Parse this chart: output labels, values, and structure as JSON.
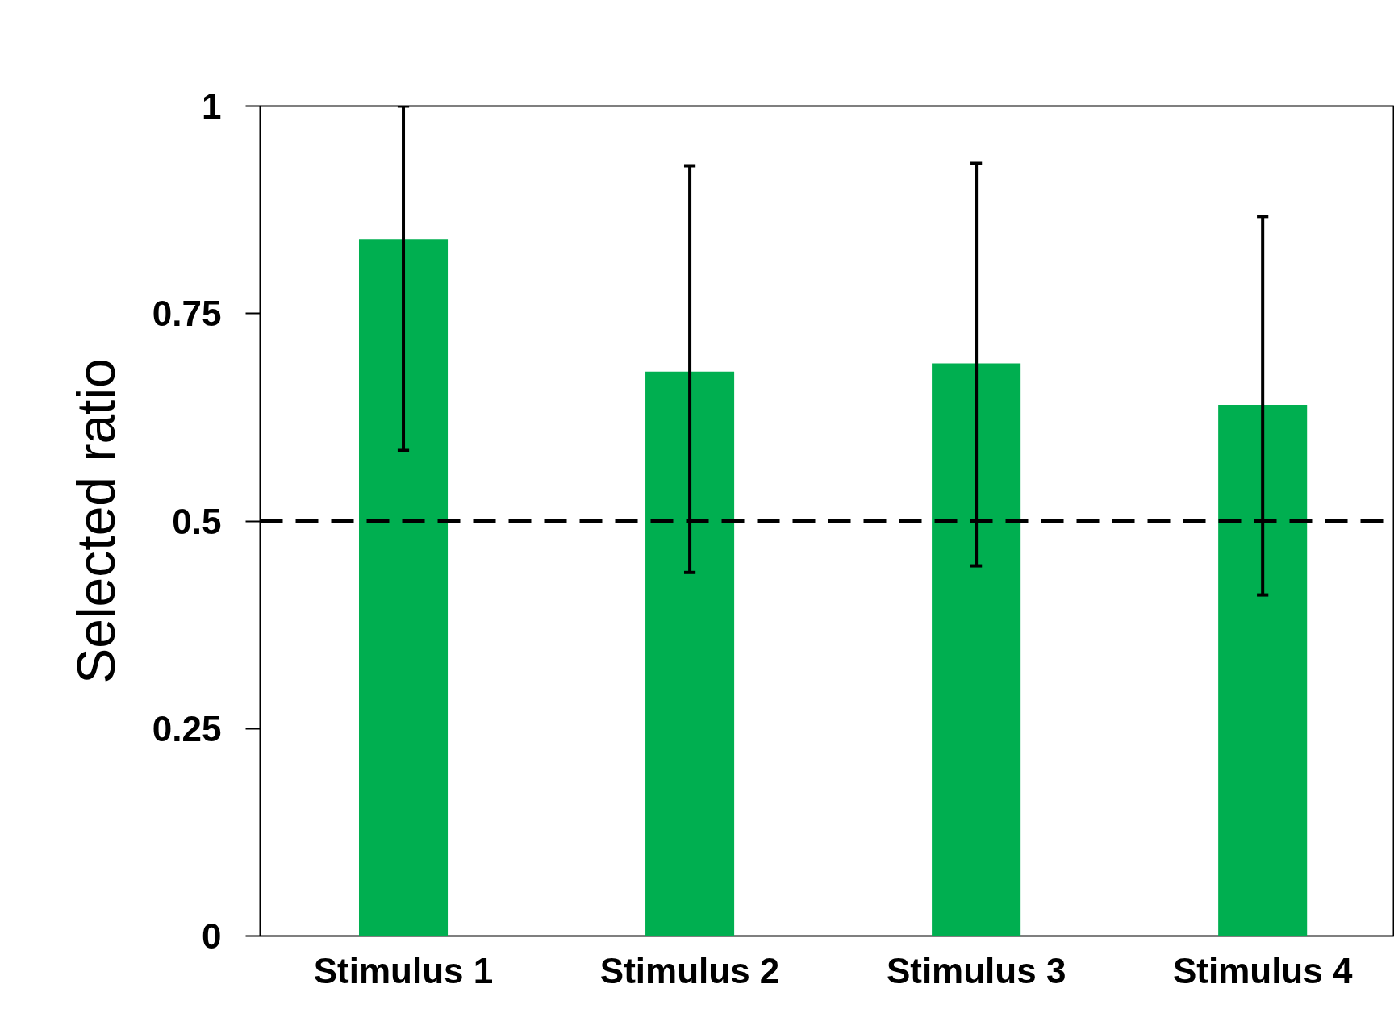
{
  "chart_data": {
    "type": "bar",
    "ylabel": "Selected ratio",
    "categories": [
      "Stimulus 1",
      "Stimulus 2",
      "Stimulus 3",
      "Stimulus 4"
    ],
    "values": [
      0.84,
      0.68,
      0.69,
      0.64
    ],
    "color": "#00af50",
    "errors": [
      [
        0.585,
        1.0
      ],
      [
        0.438,
        0.928
      ],
      [
        0.446,
        0.931
      ],
      [
        0.411,
        0.867
      ]
    ],
    "ylim": [
      0,
      1
    ],
    "yticks": [
      0,
      0.25,
      0.5,
      0.75,
      1
    ],
    "ref_lines": [
      {
        "axis": "y",
        "value": 0.5,
        "line_style": "dashed",
        "color": "#000000"
      }
    ],
    "grid": false
  }
}
